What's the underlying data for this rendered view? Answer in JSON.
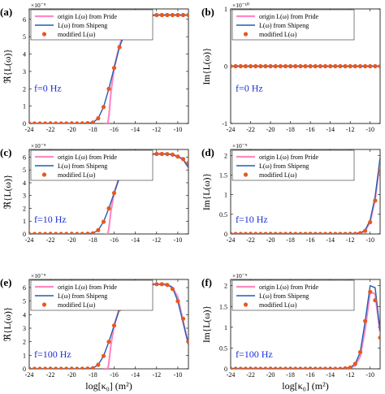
{
  "colors": {
    "pride": "#ff88c4",
    "shipeng": "#1f5fb0",
    "modified": "#e8581f",
    "freq_label": "#1a2fd6"
  },
  "chart_data": [
    {
      "type": "line",
      "panel": "(a)",
      "ylabel": "ℜ{L(ω)}",
      "freq_label": "f=0 Hz",
      "multiplier": "×10⁻⁹",
      "xlim": [
        -24,
        -9
      ],
      "ylim": [
        0,
        6.6
      ],
      "yticks": [
        0,
        1,
        2,
        3,
        4,
        5,
        6
      ],
      "ytick_labels": [
        "0",
        "1",
        "2",
        "3",
        "4",
        "5",
        "6"
      ],
      "xticks": [
        -24,
        -22,
        -20,
        -18,
        -16,
        -14,
        -12,
        -10
      ],
      "xtick_labels": [
        "-24",
        "-22",
        "-20",
        "-18",
        "-16",
        "-14",
        "-12",
        "-10"
      ],
      "legend": [
        "origin L(ω) from Pride",
        "L(ω) from Shipeng",
        "modified L(ω)"
      ],
      "series": [
        {
          "name": "origin L(ω) from Pride",
          "x": [
            -17,
            -16.6,
            -16.5,
            -16.3,
            -16,
            -15.5,
            -15,
            -14.5,
            -14,
            -13,
            -12,
            -11,
            -10,
            -9
          ],
          "y": [
            0,
            0,
            0.4,
            1.8,
            3.2,
            4.5,
            5.3,
            5.8,
            6.05,
            6.2,
            6.25,
            6.25,
            6.25,
            6.25
          ]
        },
        {
          "name": "L(ω) from Shipeng",
          "x": [
            -24,
            -19,
            -18,
            -17.5,
            -17,
            -16.5,
            -16,
            -15.5,
            -15,
            -14.5,
            -14,
            -13.5,
            -13,
            -12,
            -11,
            -10,
            -9
          ],
          "y": [
            0,
            0,
            0.05,
            0.3,
            0.95,
            2.0,
            3.2,
            4.4,
            5.2,
            5.8,
            6.05,
            6.18,
            6.22,
            6.25,
            6.25,
            6.25,
            6.25
          ]
        },
        {
          "name": "modified L(ω)",
          "x": [
            -24,
            -23.5,
            -23,
            -22.5,
            -22,
            -21.5,
            -21,
            -20.5,
            -20,
            -19.5,
            -19,
            -18.5,
            -18,
            -17.5,
            -17,
            -16.5,
            -16,
            -15.5,
            -15,
            -14.5,
            -14,
            -13.5,
            -13,
            -12.5,
            -12,
            -11.5,
            -11,
            -10.5,
            -10,
            -9.5,
            -9
          ],
          "y": [
            0,
            0,
            0,
            0,
            0,
            0,
            0,
            0,
            0,
            0,
            0.01,
            0.02,
            0.05,
            0.3,
            0.95,
            2.0,
            3.2,
            4.4,
            5.2,
            5.8,
            6.05,
            6.18,
            6.22,
            6.24,
            6.25,
            6.25,
            6.25,
            6.25,
            6.25,
            6.25,
            6.25
          ]
        }
      ]
    },
    {
      "type": "line",
      "panel": "(b)",
      "ylabel": "Im{L(ω)}",
      "freq_label": "f=0 Hz",
      "multiplier": "×10⁻¹⁰",
      "xlim": [
        -24,
        -9
      ],
      "ylim": [
        -1,
        1
      ],
      "yticks": [
        -1,
        0,
        1
      ],
      "ytick_labels": [
        "-1",
        "0",
        "1"
      ],
      "xticks": [
        -24,
        -22,
        -20,
        -18,
        -16,
        -14,
        -12,
        -10
      ],
      "xtick_labels": [
        "-24",
        "-22",
        "-20",
        "-18",
        "-16",
        "-14",
        "-12",
        "-10"
      ],
      "legend": [
        "origin L(ω) from Pride",
        "L(ω) from Shipeng",
        "modified L(ω)"
      ],
      "series": [
        {
          "name": "origin L(ω) from Pride",
          "x": [
            -24,
            -9
          ],
          "y": [
            0,
            0
          ]
        },
        {
          "name": "L(ω) from Shipeng",
          "x": [
            -24,
            -9
          ],
          "y": [
            0,
            0
          ]
        },
        {
          "name": "modified L(ω)",
          "x": [
            -24,
            -23.5,
            -23,
            -22.5,
            -22,
            -21.5,
            -21,
            -20.5,
            -20,
            -19.5,
            -19,
            -18.5,
            -18,
            -17.5,
            -17,
            -16.5,
            -16,
            -15.5,
            -15,
            -14.5,
            -14,
            -13.5,
            -13,
            -12.5,
            -12,
            -11.5,
            -11,
            -10.5,
            -10,
            -9.5,
            -9
          ],
          "y": [
            0,
            0,
            0,
            0,
            0,
            0,
            0,
            0,
            0,
            0,
            0,
            0,
            0,
            0,
            0,
            0,
            0,
            0,
            0,
            0,
            0,
            0,
            0,
            0,
            0,
            0,
            0,
            0,
            0,
            0,
            0
          ]
        }
      ]
    },
    {
      "type": "line",
      "panel": "(c)",
      "ylabel": "ℜ{L(ω)}",
      "freq_label": "f=10 Hz",
      "multiplier": "×10⁻⁹",
      "xlim": [
        -24,
        -9
      ],
      "ylim": [
        0,
        6.6
      ],
      "yticks": [
        0,
        1,
        2,
        3,
        4,
        5,
        6
      ],
      "ytick_labels": [
        "0",
        "1",
        "2",
        "3",
        "4",
        "5",
        "6"
      ],
      "xticks": [
        -24,
        -22,
        -20,
        -18,
        -16,
        -14,
        -12,
        -10
      ],
      "xtick_labels": [
        "-24",
        "-22",
        "-20",
        "-18",
        "-16",
        "-14",
        "-12",
        "-10"
      ],
      "legend": [
        "origin L(ω) from Pride",
        "L(ω) from Shipeng",
        "modified L(ω)"
      ],
      "series": [
        {
          "name": "origin L(ω) from Pride",
          "x": [
            -17,
            -16.6,
            -16.5,
            -16.3,
            -16,
            -15.5,
            -15,
            -14.5,
            -14,
            -13,
            -12,
            -11,
            -10.5,
            -10,
            -9.5,
            -9
          ],
          "y": [
            0,
            0,
            0.4,
            1.8,
            3.2,
            4.5,
            5.3,
            5.8,
            6.05,
            6.2,
            6.25,
            6.25,
            6.2,
            6.05,
            5.8,
            5.2
          ]
        },
        {
          "name": "L(ω) from Shipeng",
          "x": [
            -24,
            -19,
            -18,
            -17.5,
            -17,
            -16.5,
            -16,
            -15.5,
            -15,
            -14.5,
            -14,
            -13.5,
            -13,
            -12,
            -11,
            -10.5,
            -10,
            -9.5,
            -9
          ],
          "y": [
            0,
            0,
            0.05,
            0.3,
            0.95,
            2.0,
            3.2,
            4.4,
            5.2,
            5.8,
            6.05,
            6.18,
            6.22,
            6.25,
            6.25,
            6.2,
            6.05,
            5.85,
            5.2
          ]
        },
        {
          "name": "modified L(ω)",
          "x": [
            -24,
            -23.5,
            -23,
            -22.5,
            -22,
            -21.5,
            -21,
            -20.5,
            -20,
            -19.5,
            -19,
            -18.5,
            -18,
            -17.5,
            -17,
            -16.5,
            -16,
            -15.5,
            -15,
            -14.5,
            -14,
            -13.5,
            -13,
            -12.5,
            -12,
            -11.5,
            -11,
            -10.5,
            -10,
            -9.5,
            -9
          ],
          "y": [
            0,
            0,
            0,
            0,
            0,
            0,
            0,
            0,
            0,
            0,
            0.01,
            0.02,
            0.05,
            0.3,
            0.95,
            2.0,
            3.2,
            4.4,
            5.2,
            5.8,
            6.05,
            6.18,
            6.22,
            6.24,
            6.25,
            6.25,
            6.24,
            6.2,
            6.05,
            5.85,
            5.55
          ]
        }
      ]
    },
    {
      "type": "line",
      "panel": "(d)",
      "ylabel": "Im{L(ω)}",
      "freq_label": "f=10 Hz",
      "multiplier": "×10⁻⁹",
      "xlim": [
        -24,
        -9
      ],
      "ylim": [
        0,
        2.15
      ],
      "yticks": [
        0,
        0.5,
        1,
        1.5,
        2
      ],
      "ytick_labels": [
        "0",
        "0.5",
        "1",
        "1.5",
        "2"
      ],
      "xticks": [
        -24,
        -22,
        -20,
        -18,
        -16,
        -14,
        -12,
        -10
      ],
      "xtick_labels": [
        "-24",
        "-22",
        "-20",
        "-18",
        "-16",
        "-14",
        "-12",
        "-10"
      ],
      "legend": [
        "origin L(ω) from Pride",
        "L(ω) from Shipeng",
        "modified L(ω)"
      ],
      "series": [
        {
          "name": "origin L(ω) from Pride",
          "x": [
            -24,
            -12,
            -11,
            -10.5,
            -10,
            -9.5,
            -9
          ],
          "y": [
            0,
            0,
            0.02,
            0.08,
            0.3,
            0.9,
            1.85
          ]
        },
        {
          "name": "L(ω) from Shipeng",
          "x": [
            -24,
            -12,
            -11,
            -10.5,
            -10,
            -9.5,
            -9
          ],
          "y": [
            0,
            0,
            0.02,
            0.1,
            0.35,
            0.95,
            1.95
          ]
        },
        {
          "name": "modified L(ω)",
          "x": [
            -24,
            -23.5,
            -23,
            -22.5,
            -22,
            -21.5,
            -21,
            -20.5,
            -20,
            -19.5,
            -19,
            -18.5,
            -18,
            -17.5,
            -17,
            -16.5,
            -16,
            -15.5,
            -15,
            -14.5,
            -14,
            -13.5,
            -13,
            -12.5,
            -12,
            -11.5,
            -11,
            -10.5,
            -10,
            -9.5,
            -9
          ],
          "y": [
            0,
            0,
            0,
            0,
            0,
            0,
            0,
            0,
            0,
            0,
            0,
            0,
            0,
            0,
            0,
            0,
            0,
            0,
            0,
            0,
            0,
            0,
            0,
            0,
            0,
            0.005,
            0.02,
            0.08,
            0.3,
            0.85,
            1.6
          ]
        }
      ]
    },
    {
      "type": "line",
      "panel": "(e)",
      "ylabel": "ℜ{L(ω)}",
      "freq_label": "f=100 Hz",
      "multiplier": "×10⁻⁹",
      "xlim": [
        -24,
        -9
      ],
      "ylim": [
        0,
        6.6
      ],
      "yticks": [
        0,
        1,
        2,
        3,
        4,
        5,
        6
      ],
      "ytick_labels": [
        "0",
        "1",
        "2",
        "3",
        "4",
        "5",
        "6"
      ],
      "xticks": [
        -24,
        -22,
        -20,
        -18,
        -16,
        -14,
        -12,
        -10
      ],
      "xtick_labels": [
        "-24",
        "-22",
        "-20",
        "-18",
        "-16",
        "-14",
        "-12",
        "-10"
      ],
      "legend": [
        "origin L(ω) from Pride",
        "L(ω) from Shipeng",
        "modified L(ω)"
      ],
      "xlabel": "log[κ₀] (m²)",
      "series": [
        {
          "name": "origin L(ω) from Pride",
          "x": [
            -17,
            -16.6,
            -16.5,
            -16.3,
            -16,
            -15.5,
            -15,
            -14.5,
            -14,
            -13,
            -12,
            -11,
            -10.5,
            -10,
            -9.5,
            -9
          ],
          "y": [
            0,
            0,
            0.4,
            1.8,
            3.2,
            4.5,
            5.3,
            5.8,
            6.05,
            6.2,
            6.25,
            6.2,
            6.0,
            5.3,
            3.5,
            1.8
          ]
        },
        {
          "name": "L(ω) from Shipeng",
          "x": [
            -24,
            -19,
            -18,
            -17.5,
            -17,
            -16.5,
            -16,
            -15.5,
            -15,
            -14.5,
            -14,
            -13.5,
            -13,
            -12,
            -11,
            -10.5,
            -10,
            -9.5,
            -9
          ],
          "y": [
            0,
            0,
            0.05,
            0.3,
            0.95,
            2.0,
            3.2,
            4.4,
            5.2,
            5.8,
            6.05,
            6.18,
            6.22,
            6.25,
            6.25,
            6.0,
            5.0,
            3.4,
            1.8
          ]
        },
        {
          "name": "modified L(ω)",
          "x": [
            -24,
            -23.5,
            -23,
            -22.5,
            -22,
            -21.5,
            -21,
            -20.5,
            -20,
            -19.5,
            -19,
            -18.5,
            -18,
            -17.5,
            -17,
            -16.5,
            -16,
            -15.5,
            -15,
            -14.5,
            -14,
            -13.5,
            -13,
            -12.5,
            -12,
            -11.5,
            -11,
            -10.5,
            -10,
            -9.5,
            -9
          ],
          "y": [
            0,
            0,
            0,
            0,
            0,
            0,
            0,
            0,
            0,
            0,
            0.01,
            0.02,
            0.05,
            0.3,
            0.95,
            2.0,
            3.2,
            4.4,
            5.2,
            5.8,
            6.05,
            6.18,
            6.22,
            6.24,
            6.25,
            6.25,
            6.2,
            5.9,
            5.0,
            3.7,
            2.0
          ]
        }
      ]
    },
    {
      "type": "line",
      "panel": "(f)",
      "ylabel": "Im{L(ω)}",
      "freq_label": "f=100 Hz",
      "multiplier": "×10⁻⁹",
      "xlim": [
        -24,
        -9
      ],
      "ylim": [
        0,
        2.15
      ],
      "yticks": [
        0,
        0.5,
        1,
        1.5,
        2
      ],
      "ytick_labels": [
        "0",
        "0.5",
        "1",
        "1.5",
        "2"
      ],
      "xticks": [
        -24,
        -22,
        -20,
        -18,
        -16,
        -14,
        -12,
        -10
      ],
      "xtick_labels": [
        "-24",
        "-22",
        "-20",
        "-18",
        "-16",
        "-14",
        "-12",
        "-10"
      ],
      "legend": [
        "origin L(ω) from Pride",
        "L(ω) from Shipeng",
        "modified L(ω)"
      ],
      "xlabel": "log[κ₀] (m²)",
      "series": [
        {
          "name": "origin L(ω) from Pride",
          "x": [
            -24,
            -13,
            -12,
            -11.5,
            -11,
            -10.5,
            -10,
            -9.5,
            -9
          ],
          "y": [
            0,
            0,
            0.02,
            0.08,
            0.3,
            0.95,
            1.85,
            1.8,
            0.85
          ]
        },
        {
          "name": "L(ω) from Shipeng",
          "x": [
            -24,
            -13,
            -12,
            -11.5,
            -11,
            -10.5,
            -10,
            -9.5,
            -9
          ],
          "y": [
            0,
            0,
            0.03,
            0.12,
            0.4,
            1.15,
            2.0,
            1.95,
            0.9
          ]
        },
        {
          "name": "modified L(ω)",
          "x": [
            -24,
            -23.5,
            -23,
            -22.5,
            -22,
            -21.5,
            -21,
            -20.5,
            -20,
            -19.5,
            -19,
            -18.5,
            -18,
            -17.5,
            -17,
            -16.5,
            -16,
            -15.5,
            -15,
            -14.5,
            -14,
            -13.5,
            -13,
            -12.5,
            -12,
            -11.5,
            -11,
            -10.5,
            -10,
            -9.5,
            -9
          ],
          "y": [
            0,
            0,
            0,
            0,
            0,
            0,
            0,
            0,
            0,
            0,
            0,
            0,
            0,
            0,
            0,
            0,
            0,
            0,
            0,
            0,
            0,
            0,
            0,
            0.01,
            0.03,
            0.12,
            0.4,
            1.15,
            1.85,
            1.65,
            0.75
          ]
        }
      ]
    }
  ]
}
